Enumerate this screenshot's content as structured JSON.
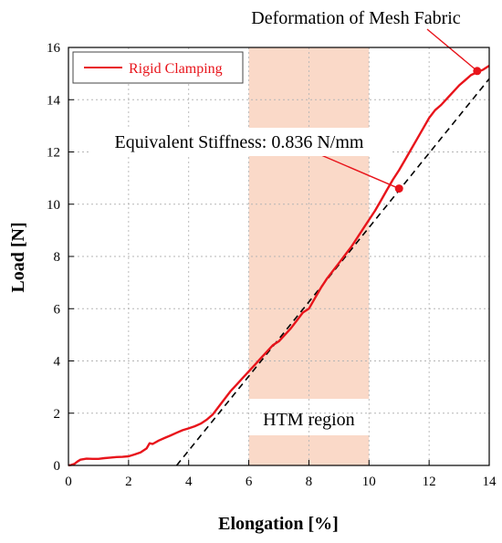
{
  "chart_data": {
    "type": "line",
    "xlabel": "Elongation [%]",
    "ylabel": "Load [N]",
    "xlim": [
      0,
      14
    ],
    "ylim": [
      0,
      16
    ],
    "xticks": [
      0,
      2,
      4,
      6,
      8,
      10,
      12,
      14
    ],
    "yticks": [
      0,
      2,
      4,
      6,
      8,
      10,
      12,
      14,
      16
    ],
    "grid": true,
    "legend_position": "top-left",
    "series": [
      {
        "name": "Rigid Clamping",
        "color": "#e8141b",
        "x": [
          0,
          0.1,
          0.2,
          0.3,
          0.4,
          0.6,
          0.8,
          1.0,
          1.2,
          1.4,
          1.6,
          1.8,
          2.0,
          2.2,
          2.4,
          2.6,
          2.7,
          2.8,
          3.0,
          3.2,
          3.4,
          3.6,
          3.8,
          4.0,
          4.2,
          4.4,
          4.6,
          4.8,
          5.0,
          5.2,
          5.4,
          5.6,
          5.8,
          6.0,
          6.2,
          6.4,
          6.6,
          6.8,
          7.0,
          7.2,
          7.4,
          7.6,
          7.8,
          8.0,
          8.2,
          8.4,
          8.6,
          8.8,
          9.0,
          9.2,
          9.4,
          9.6,
          9.8,
          10.0,
          10.2,
          10.4,
          10.6,
          10.8,
          11.0,
          11.2,
          11.4,
          11.6,
          11.8,
          12.0,
          12.2,
          12.4,
          12.6,
          12.8,
          13.0,
          13.2,
          13.4,
          13.6,
          13.8,
          14.0
        ],
        "y": [
          0,
          0.02,
          0.06,
          0.15,
          0.22,
          0.26,
          0.25,
          0.25,
          0.28,
          0.3,
          0.32,
          0.33,
          0.35,
          0.42,
          0.5,
          0.65,
          0.85,
          0.82,
          0.95,
          1.05,
          1.15,
          1.25,
          1.35,
          1.42,
          1.5,
          1.6,
          1.75,
          1.95,
          2.25,
          2.55,
          2.85,
          3.1,
          3.35,
          3.6,
          3.85,
          4.1,
          4.35,
          4.6,
          4.75,
          5.0,
          5.25,
          5.55,
          5.85,
          6.0,
          6.4,
          6.8,
          7.15,
          7.45,
          7.75,
          8.05,
          8.35,
          8.7,
          9.05,
          9.4,
          9.75,
          10.15,
          10.55,
          10.95,
          11.3,
          11.7,
          12.1,
          12.5,
          12.9,
          13.3,
          13.6,
          13.8,
          14.05,
          14.3,
          14.55,
          14.75,
          14.95,
          15.05,
          15.15,
          15.3
        ]
      }
    ],
    "fit_line": {
      "style": "dashed",
      "color": "#000000",
      "x": [
        3.6,
        14.0
      ],
      "y": [
        0,
        14.8
      ]
    },
    "regions": [
      {
        "label": "HTM region",
        "x_start": 6,
        "x_end": 10,
        "color": "#fad9c8"
      }
    ],
    "annotations": [
      {
        "text": "Deformation of Mesh Fabric",
        "point": [
          13.6,
          15.1
        ]
      },
      {
        "text": "Equivalent Stiffness: 0.836 N/mm",
        "point": [
          11.0,
          10.6
        ]
      }
    ]
  }
}
